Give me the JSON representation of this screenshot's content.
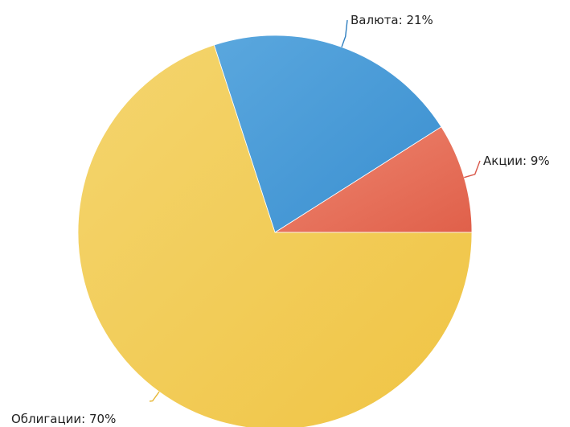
{
  "chart_data": {
    "type": "pie",
    "slices": [
      {
        "label": "Акции: 9%",
        "category": "Акции",
        "value": 9,
        "color": "#e0604a",
        "color_light": "#ee8670"
      },
      {
        "label": "Валюта: 21%",
        "category": "Валюта",
        "value": 21,
        "color": "#3a8fd0",
        "color_light": "#5aa7de"
      },
      {
        "label": "Облигации: 70%",
        "category": "Облигации",
        "value": 70,
        "color": "#f0c444",
        "color_light": "#f4d56e"
      }
    ],
    "start": "3 o'clock",
    "direction": "counterclockwise",
    "legend": "none"
  }
}
